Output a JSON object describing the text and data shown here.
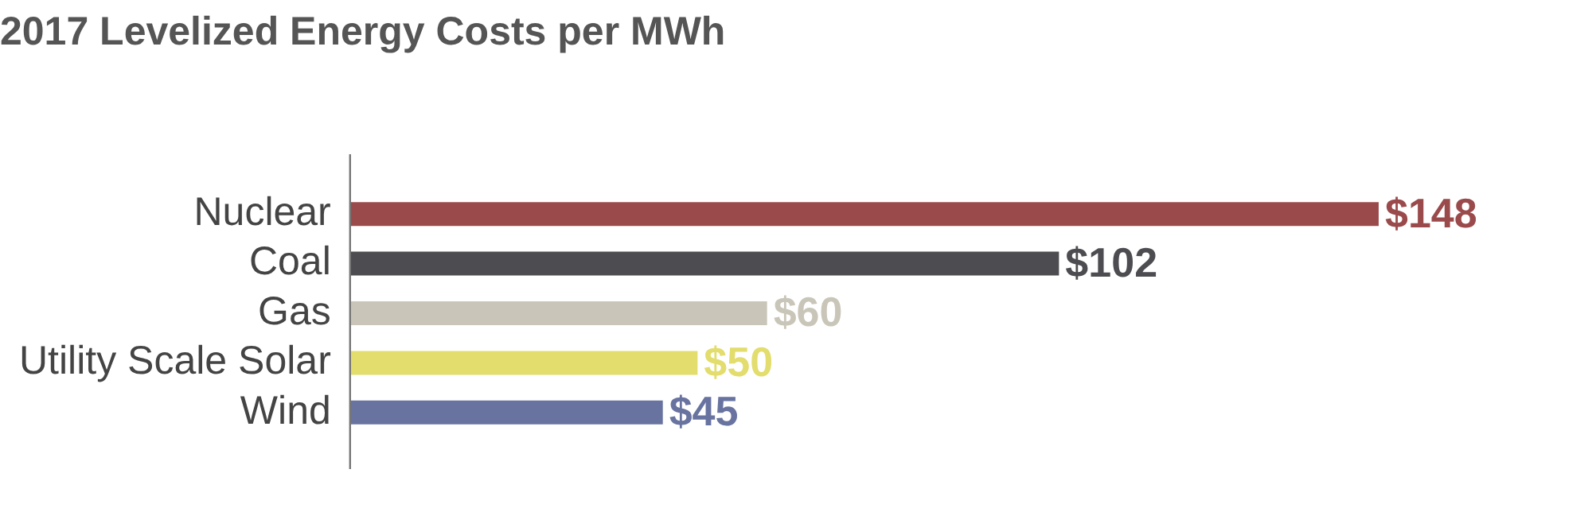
{
  "chart_data": {
    "type": "bar",
    "orientation": "horizontal",
    "title": "2017 Levelized Energy Costs per MWh",
    "categories": [
      "Nuclear",
      "Coal",
      "Gas",
      "Utility Scale Solar",
      "Wind"
    ],
    "values": [
      148,
      102,
      60,
      50,
      45
    ],
    "colors": [
      "#9b4a4c",
      "#4d4c50",
      "#c9c6b9",
      "#e2dd6c",
      "#6873a0"
    ],
    "value_labels": [
      "$148",
      "$102",
      "$60",
      "$50",
      "$45"
    ],
    "grid": false,
    "legend": false,
    "tick_labels": "y"
  }
}
